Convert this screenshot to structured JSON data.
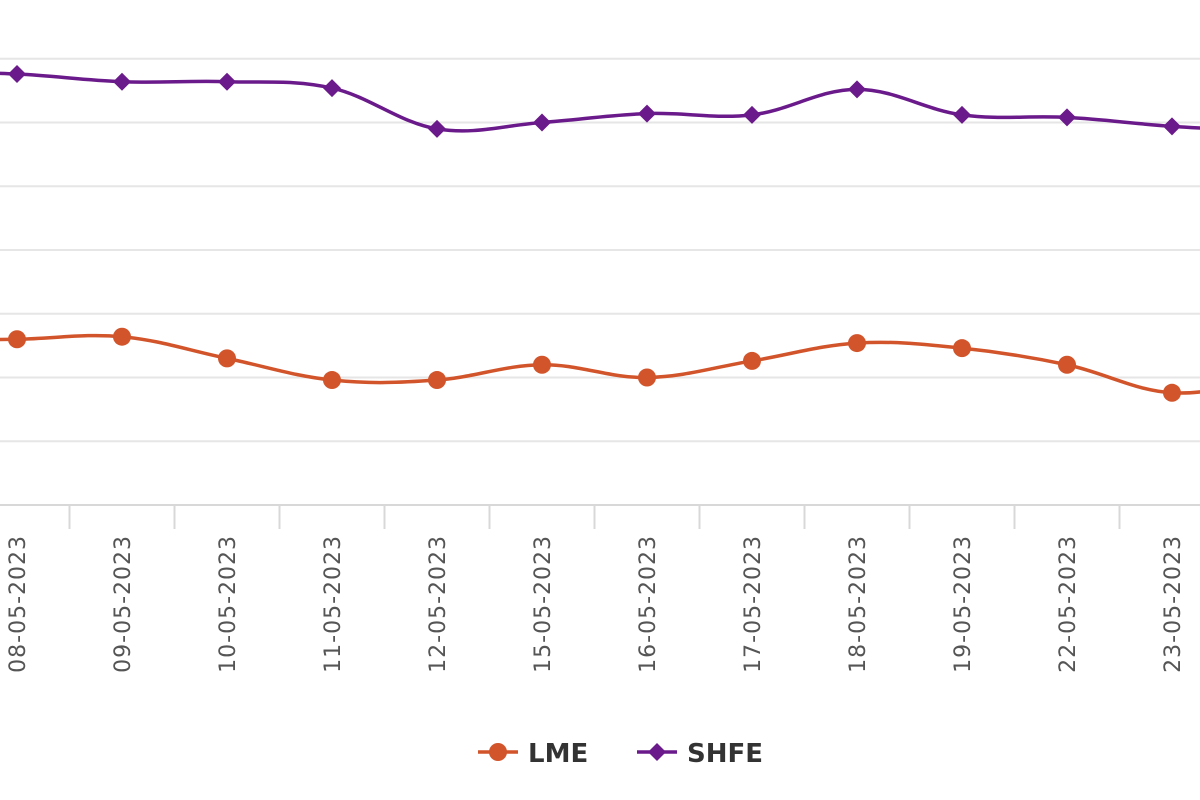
{
  "chart_data": {
    "type": "line",
    "categories": [
      "08-05-2023",
      "09-05-2023",
      "10-05-2023",
      "11-05-2023",
      "12-05-2023",
      "15-05-2023",
      "16-05-2023",
      "17-05-2023",
      "18-05-2023",
      "19-05-2023",
      "22-05-2023",
      "23-05-2023"
    ],
    "series": [
      {
        "name": "LME",
        "color": "#d2542a",
        "marker": "circle",
        "values": [
          2.3,
          2.32,
          2.15,
          1.98,
          1.98,
          2.1,
          2.0,
          2.13,
          2.27,
          2.23,
          2.1,
          1.88
        ]
      },
      {
        "name": "SHFE",
        "color": "#6a1a8a",
        "marker": "diamond",
        "values": [
          4.38,
          4.32,
          4.32,
          4.27,
          3.95,
          4.0,
          4.07,
          4.06,
          4.26,
          4.06,
          4.04,
          3.97
        ]
      }
    ],
    "trailing": {
      "x_after_last": 12,
      "values": [
        2.0,
        3.93
      ]
    },
    "ylim": [
      1.0,
      5.0
    ],
    "grid": true,
    "legend_position": "bottom-center",
    "title": "",
    "xlabel": "",
    "ylabel": ""
  }
}
